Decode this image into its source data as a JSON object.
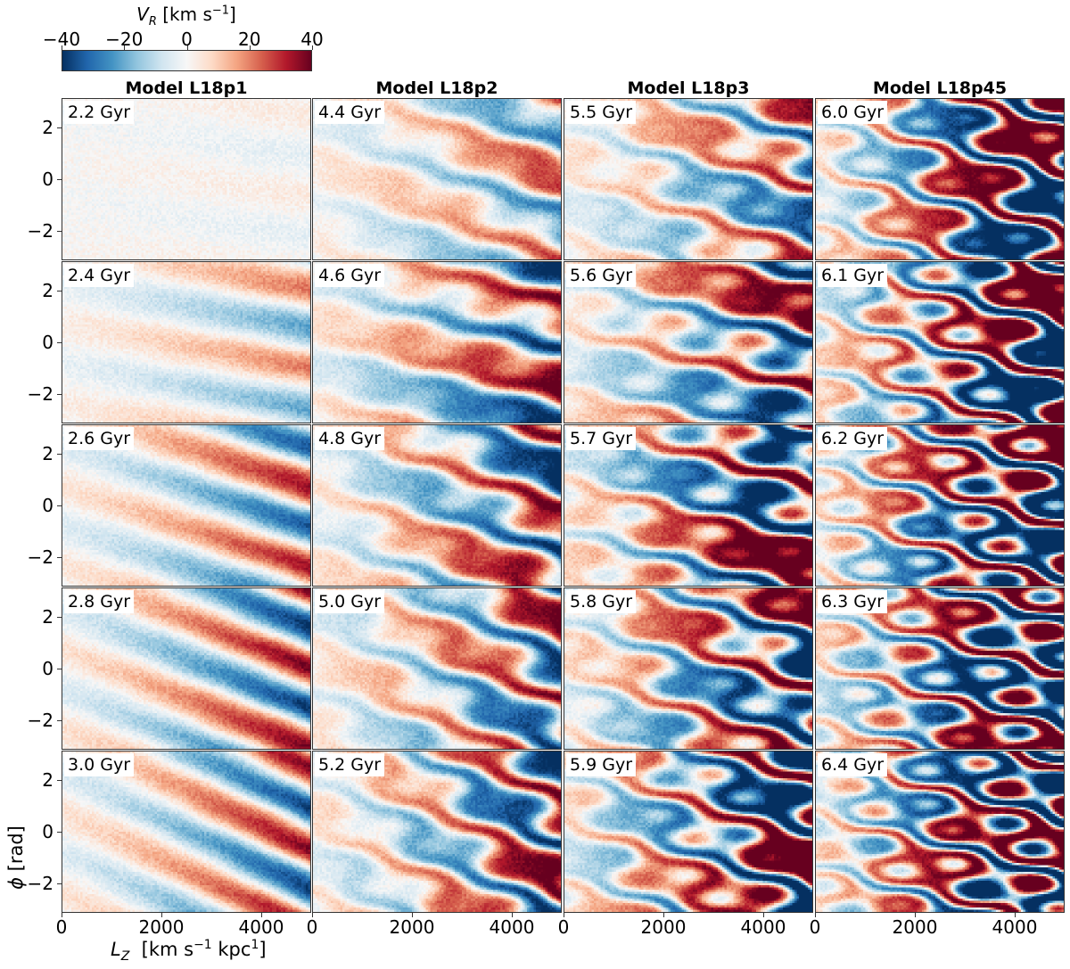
{
  "chart_data": {
    "type": "heatmap",
    "colorbar": {
      "label_main": "V",
      "label_sub": "R",
      "label_unit": " [km s",
      "label_exp": "−1",
      "label_end": "]",
      "range": [
        -40,
        40
      ],
      "ticks": [
        "−40",
        "−20",
        "0",
        "20",
        "40"
      ],
      "tick_values": [
        -40,
        -20,
        0,
        20,
        40
      ],
      "colormap": "RdBu_r",
      "stops": [
        "#053061",
        "#2166ac",
        "#4393c3",
        "#92c5de",
        "#d1e5f0",
        "#f7f7f7",
        "#fddbc7",
        "#f4a582",
        "#d6604d",
        "#b2182b",
        "#67001f"
      ]
    },
    "xlabel": {
      "main": "L",
      "sub": "Z",
      "unit": "  [km s",
      "exp1": "−1",
      "mid": " kpc",
      "exp2": "1",
      "end": "]"
    },
    "ylabel": {
      "main": "ϕ",
      "unit": " [rad]"
    },
    "xlim": [
      0,
      5000
    ],
    "ylim": [
      -3.14159,
      3.14159
    ],
    "xticks": [
      "0",
      "2000",
      "4000"
    ],
    "xtick_values": [
      0,
      2000,
      4000
    ],
    "yticks": [
      "2",
      "0",
      "−2"
    ],
    "ytick_values": [
      2,
      0,
      -2
    ],
    "columns": [
      {
        "title": "Model L18p1",
        "panels": [
          {
            "time": "2.2 Gyr",
            "amp": 4,
            "tilt": 0.2,
            "turb": 0.0
          },
          {
            "time": "2.4 Gyr",
            "amp": 22,
            "tilt": 0.25,
            "turb": 0.05
          },
          {
            "time": "2.6 Gyr",
            "amp": 35,
            "tilt": 0.45,
            "turb": 0.05
          },
          {
            "time": "2.8 Gyr",
            "amp": 40,
            "tilt": 0.55,
            "turb": 0.05
          },
          {
            "time": "3.0 Gyr",
            "amp": 38,
            "tilt": 0.65,
            "turb": 0.05
          }
        ]
      },
      {
        "title": "Model L18p2",
        "panels": [
          {
            "time": "4.4 Gyr",
            "amp": 30,
            "tilt": 0.55,
            "turb": 0.4
          },
          {
            "time": "4.6 Gyr",
            "amp": 45,
            "tilt": 0.35,
            "turb": 0.4
          },
          {
            "time": "4.8 Gyr",
            "amp": 45,
            "tilt": 0.6,
            "turb": 0.5
          },
          {
            "time": "5.0 Gyr",
            "amp": 42,
            "tilt": 0.75,
            "turb": 0.5
          },
          {
            "time": "5.2 Gyr",
            "amp": 45,
            "tilt": 0.85,
            "turb": 0.6
          }
        ]
      },
      {
        "title": "Model L18p3",
        "panels": [
          {
            "time": "5.5 Gyr",
            "amp": 38,
            "tilt": 0.6,
            "turb": 0.7
          },
          {
            "time": "5.6 Gyr",
            "amp": 50,
            "tilt": 0.35,
            "turb": 0.7
          },
          {
            "time": "5.7 Gyr",
            "amp": 60,
            "tilt": 0.45,
            "turb": 0.8
          },
          {
            "time": "5.8 Gyr",
            "amp": 55,
            "tilt": 0.7,
            "turb": 0.8
          },
          {
            "time": "5.9 Gyr",
            "amp": 60,
            "tilt": 0.75,
            "turb": 0.9
          }
        ]
      },
      {
        "title": "Model L18p45",
        "panels": [
          {
            "time": "6.0 Gyr",
            "amp": 60,
            "tilt": 0.9,
            "turb": 1.1
          },
          {
            "time": "6.1 Gyr",
            "amp": 65,
            "tilt": 0.8,
            "turb": 1.2
          },
          {
            "time": "6.2 Gyr",
            "amp": 65,
            "tilt": 0.7,
            "turb": 1.3
          },
          {
            "time": "6.3 Gyr",
            "amp": 65,
            "tilt": 0.6,
            "turb": 1.3
          },
          {
            "time": "6.4 Gyr",
            "amp": 65,
            "tilt": 0.7,
            "turb": 1.4
          }
        ]
      }
    ]
  }
}
